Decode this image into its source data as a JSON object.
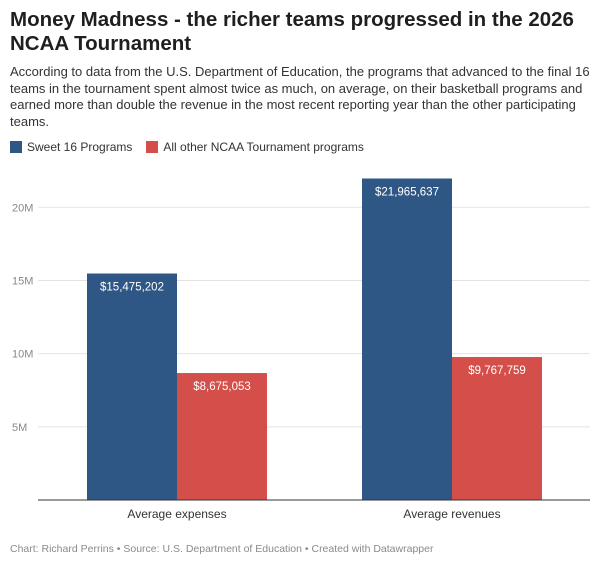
{
  "title": "Money Madness - the richer teams progressed in the 2026 NCAA Tournament",
  "subtitle": "According to data from the U.S. Department of Education, the programs that advanced to the final 16 teams in the tournament spent almost twice as much, on average, on their basketball programs and earned more than double the revenue in the most recent reporting year than the other participating teams.",
  "footer": "Chart: Richard Perrins • Source: U.S. Department of Education • Created with Datawrapper",
  "chart_data": {
    "type": "bar",
    "categories": [
      "Average expenses",
      "Average revenues"
    ],
    "series": [
      {
        "name": "Sweet 16 Programs",
        "color": "#2f5785",
        "values": [
          15475202,
          21965637
        ],
        "labels": [
          "$15,475,202",
          "$21,965,637"
        ]
      },
      {
        "name": "All other NCAA Tournament programs",
        "color": "#d44f4a",
        "values": [
          8675053,
          9767759
        ],
        "labels": [
          "$8,675,053",
          "$9,767,759"
        ]
      }
    ],
    "ylim": [
      0,
      22000000
    ],
    "yticks": [
      5000000,
      10000000,
      15000000,
      20000000
    ],
    "ytick_labels": [
      "5M",
      "10M",
      "15M",
      "20M"
    ],
    "grid": true,
    "legend_position": "top-left",
    "xlabel": "",
    "ylabel": ""
  }
}
